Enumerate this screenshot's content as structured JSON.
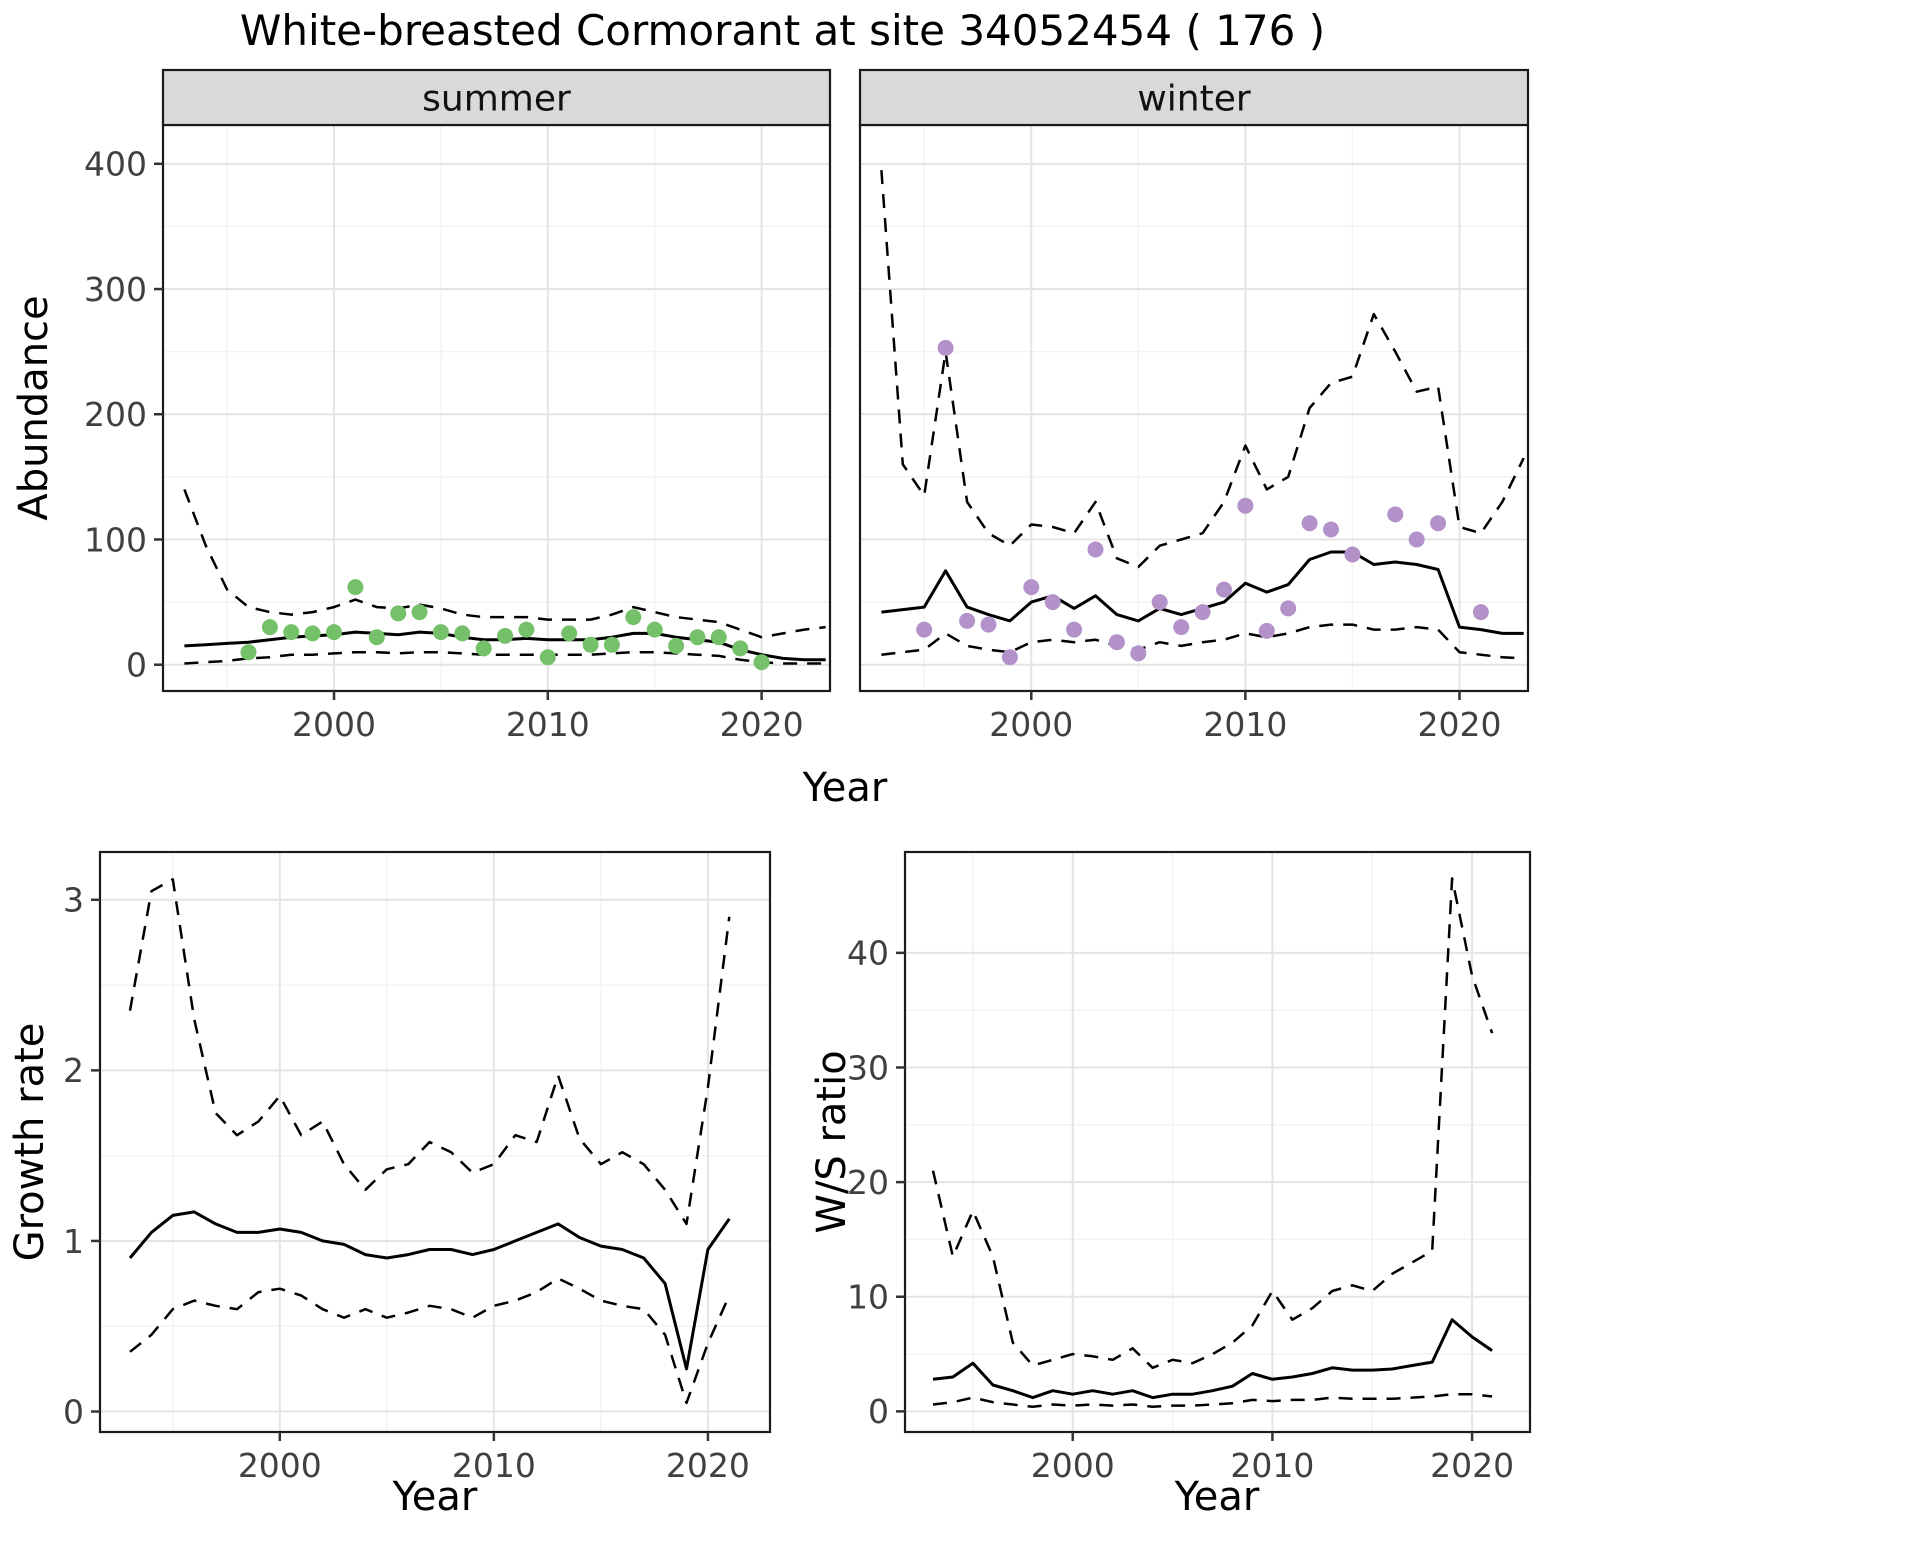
{
  "title": "White-breasted Cormorant at site 34052454 ( 176 )",
  "axis_labels": {
    "abundance": "Abundance",
    "year_top": "Year",
    "growth_rate": "Growth rate",
    "year_growth": "Year",
    "ws_ratio": "W/S ratio",
    "year_ws": "Year"
  },
  "colors": {
    "summer_points": "#74c169",
    "winter_points": "#b292c9",
    "line": "#000000",
    "grid_major": "#e4e4e4",
    "grid_minor": "#f3f3f3",
    "strip_bg": "#d9d9d9",
    "panel_border": "#1a1a1a",
    "tick_label": "#404040"
  },
  "chart_data": [
    {
      "id": "summer-abundance",
      "type": "line",
      "facet_label": "summer",
      "xlabel": "Year",
      "ylabel": "Abundance",
      "xlim": [
        1992.0,
        2023.2
      ],
      "ylim": [
        -21,
        431
      ],
      "xticks": [
        2000,
        2010,
        2020
      ],
      "yticks": [
        0,
        100,
        200,
        300,
        400
      ],
      "xminor": [
        1995,
        2005,
        2015
      ],
      "yminor": [
        50,
        150,
        250,
        350
      ],
      "show_y_tick_labels": true,
      "x": [
        1993,
        1994,
        1995,
        1996,
        1997,
        1998,
        1999,
        2000,
        2001,
        2002,
        2003,
        2004,
        2005,
        2006,
        2007,
        2008,
        2009,
        2010,
        2011,
        2012,
        2013,
        2014,
        2015,
        2016,
        2017,
        2018,
        2019,
        2020,
        2021,
        2022,
        2023
      ],
      "series": [
        {
          "name": "fit",
          "style": "solid",
          "values": [
            15,
            16,
            17,
            18,
            20,
            22,
            23,
            24,
            26,
            25,
            24,
            26,
            25,
            22,
            20,
            20,
            21,
            20,
            20,
            20,
            22,
            25,
            25,
            22,
            20,
            18,
            12,
            8,
            5,
            4,
            4
          ]
        },
        {
          "name": "upper_ci",
          "style": "dashed",
          "values": [
            140,
            95,
            60,
            46,
            42,
            40,
            42,
            46,
            52,
            46,
            45,
            48,
            45,
            40,
            38,
            38,
            38,
            36,
            36,
            36,
            40,
            46,
            42,
            38,
            36,
            34,
            28,
            22,
            25,
            28,
            30
          ]
        },
        {
          "name": "lower_ci",
          "style": "dashed",
          "values": [
            1,
            2,
            3,
            5,
            6,
            8,
            8,
            9,
            10,
            10,
            9,
            10,
            10,
            9,
            8,
            8,
            8,
            8,
            8,
            8,
            9,
            10,
            10,
            9,
            8,
            7,
            4,
            2,
            1,
            1,
            1
          ]
        }
      ],
      "points": {
        "name": "observed-counts",
        "color": "#74c169",
        "x": [
          1996,
          1997,
          1998,
          1999,
          2000,
          2001,
          2002,
          2003,
          2004,
          2005,
          2006,
          2007,
          2008,
          2009,
          2010,
          2011,
          2012,
          2013,
          2014,
          2015,
          2016,
          2017,
          2018,
          2019,
          2020
        ],
        "y": [
          10,
          30,
          26,
          25,
          26,
          62,
          22,
          41,
          42,
          26,
          25,
          13,
          23,
          28,
          6,
          25,
          16,
          16,
          38,
          28,
          15,
          22,
          22,
          13,
          2
        ]
      }
    },
    {
      "id": "winter-abundance",
      "type": "line",
      "facet_label": "winter",
      "xlabel": "Year",
      "ylabel": "Abundance",
      "xlim": [
        1992.0,
        2023.2
      ],
      "ylim": [
        -21,
        431
      ],
      "xticks": [
        2000,
        2010,
        2020
      ],
      "yticks": [
        0,
        100,
        200,
        300,
        400
      ],
      "xminor": [
        1995,
        2005,
        2015
      ],
      "yminor": [
        50,
        150,
        250,
        350
      ],
      "show_y_tick_labels": false,
      "x": [
        1993,
        1994,
        1995,
        1996,
        1997,
        1998,
        1999,
        2000,
        2001,
        2002,
        2003,
        2004,
        2005,
        2006,
        2007,
        2008,
        2009,
        2010,
        2011,
        2012,
        2013,
        2014,
        2015,
        2016,
        2017,
        2018,
        2019,
        2020,
        2021,
        2022,
        2023
      ],
      "series": [
        {
          "name": "fit",
          "style": "solid",
          "values": [
            42,
            44,
            46,
            75,
            46,
            40,
            35,
            50,
            55,
            45,
            55,
            40,
            35,
            45,
            40,
            45,
            50,
            65,
            58,
            64,
            84,
            90,
            90,
            80,
            82,
            80,
            76,
            30,
            28,
            25,
            25
          ]
        },
        {
          "name": "upper_ci",
          "style": "dashed",
          "values": [
            395,
            160,
            135,
            250,
            130,
            105,
            95,
            112,
            110,
            105,
            130,
            85,
            78,
            95,
            100,
            105,
            130,
            175,
            140,
            150,
            205,
            225,
            230,
            280,
            250,
            218,
            222,
            110,
            105,
            130,
            165
          ]
        },
        {
          "name": "lower_ci",
          "style": "dashed",
          "values": [
            8,
            10,
            12,
            25,
            15,
            12,
            10,
            18,
            20,
            18,
            20,
            15,
            12,
            18,
            15,
            18,
            20,
            25,
            22,
            25,
            30,
            32,
            32,
            28,
            28,
            30,
            28,
            10,
            8,
            6,
            5
          ]
        }
      ],
      "points": {
        "name": "observed-counts",
        "color": "#b292c9",
        "x": [
          1995,
          1996,
          1997,
          1998,
          1999,
          2000,
          2001,
          2002,
          2003,
          2004,
          2005,
          2006,
          2007,
          2008,
          2009,
          2010,
          2011,
          2012,
          2013,
          2014,
          2015,
          2017,
          2018,
          2019,
          2021
        ],
        "y": [
          28,
          253,
          35,
          32,
          6,
          62,
          50,
          28,
          92,
          18,
          9,
          50,
          30,
          42,
          60,
          127,
          27,
          45,
          113,
          108,
          88,
          120,
          100,
          113,
          42
        ]
      }
    },
    {
      "id": "growth-rate",
      "type": "line",
      "facet_label": null,
      "xlabel": "Year",
      "ylabel": "Growth rate",
      "xlim": [
        1991.6,
        2022.9
      ],
      "ylim": [
        -0.12,
        3.28
      ],
      "xticks": [
        2000,
        2010,
        2020
      ],
      "yticks": [
        0,
        1,
        2,
        3
      ],
      "xminor": [
        1995,
        2005,
        2015
      ],
      "yminor": [
        0.5,
        1.5,
        2.5
      ],
      "show_y_tick_labels": true,
      "x": [
        1993,
        1994,
        1995,
        1996,
        1997,
        1998,
        1999,
        2000,
        2001,
        2002,
        2003,
        2004,
        2005,
        2006,
        2007,
        2008,
        2009,
        2010,
        2011,
        2012,
        2013,
        2014,
        2015,
        2016,
        2017,
        2018,
        2019,
        2020,
        2021
      ],
      "series": [
        {
          "name": "fit",
          "style": "solid",
          "values": [
            0.9,
            1.05,
            1.15,
            1.17,
            1.1,
            1.05,
            1.05,
            1.07,
            1.05,
            1.0,
            0.98,
            0.92,
            0.9,
            0.92,
            0.95,
            0.95,
            0.92,
            0.95,
            1.0,
            1.05,
            1.1,
            1.02,
            0.97,
            0.95,
            0.9,
            0.75,
            0.25,
            0.95,
            1.13
          ]
        },
        {
          "name": "upper_ci",
          "style": "dashed",
          "values": [
            2.35,
            3.05,
            3.12,
            2.3,
            1.75,
            1.62,
            1.7,
            1.85,
            1.62,
            1.7,
            1.45,
            1.3,
            1.42,
            1.45,
            1.58,
            1.52,
            1.4,
            1.45,
            1.62,
            1.58,
            1.97,
            1.6,
            1.45,
            1.52,
            1.45,
            1.3,
            1.1,
            1.9,
            2.9
          ]
        },
        {
          "name": "lower_ci",
          "style": "dashed",
          "values": [
            0.35,
            0.45,
            0.6,
            0.65,
            0.62,
            0.6,
            0.7,
            0.72,
            0.68,
            0.6,
            0.55,
            0.6,
            0.55,
            0.58,
            0.62,
            0.6,
            0.55,
            0.62,
            0.65,
            0.7,
            0.78,
            0.72,
            0.65,
            0.62,
            0.6,
            0.45,
            0.05,
            0.4,
            0.68
          ]
        }
      ],
      "points": null
    },
    {
      "id": "ws-ratio",
      "type": "line",
      "facet_label": null,
      "xlabel": "Year",
      "ylabel": "W/S ratio",
      "xlim": [
        1991.6,
        2022.9
      ],
      "ylim": [
        -1.8,
        48.8
      ],
      "xticks": [
        2000,
        2010,
        2020
      ],
      "yticks": [
        0,
        10,
        20,
        30,
        40
      ],
      "xminor": [
        1995,
        2005,
        2015
      ],
      "yminor": [
        5,
        15,
        25,
        35
      ],
      "show_y_tick_labels": true,
      "x": [
        1993,
        1994,
        1995,
        1996,
        1997,
        1998,
        1999,
        2000,
        2001,
        2002,
        2003,
        2004,
        2005,
        2006,
        2007,
        2008,
        2009,
        2010,
        2011,
        2012,
        2013,
        2014,
        2015,
        2016,
        2017,
        2018,
        2019,
        2020,
        2021
      ],
      "series": [
        {
          "name": "fit",
          "style": "solid",
          "values": [
            2.8,
            3.0,
            4.2,
            2.3,
            1.8,
            1.2,
            1.8,
            1.5,
            1.8,
            1.5,
            1.8,
            1.2,
            1.5,
            1.5,
            1.8,
            2.2,
            3.3,
            2.8,
            3.0,
            3.3,
            3.8,
            3.6,
            3.6,
            3.7,
            4.0,
            4.3,
            8.0,
            6.5,
            5.3
          ]
        },
        {
          "name": "upper_ci",
          "style": "dashed",
          "values": [
            21,
            13.5,
            17.5,
            13.5,
            6.0,
            4.0,
            4.5,
            5.0,
            4.8,
            4.5,
            5.5,
            3.8,
            4.5,
            4.2,
            5.0,
            6.0,
            7.5,
            10.5,
            8.0,
            9.0,
            10.5,
            11.0,
            10.5,
            12.0,
            13.0,
            14.0,
            46.5,
            38.0,
            33.0
          ]
        },
        {
          "name": "lower_ci",
          "style": "dashed",
          "values": [
            0.6,
            0.8,
            1.2,
            0.8,
            0.6,
            0.4,
            0.6,
            0.5,
            0.6,
            0.5,
            0.6,
            0.4,
            0.5,
            0.5,
            0.6,
            0.7,
            1.0,
            0.9,
            1.0,
            1.0,
            1.2,
            1.1,
            1.1,
            1.1,
            1.2,
            1.3,
            1.5,
            1.5,
            1.3
          ]
        }
      ],
      "points": null
    }
  ]
}
